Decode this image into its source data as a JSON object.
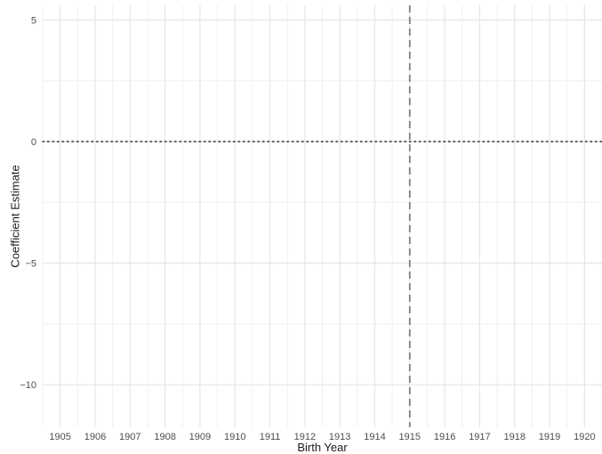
{
  "chart_data": {
    "type": "scatter",
    "title": "",
    "xlabel": "Birth Year",
    "ylabel": "Coefficient Estimate",
    "x_ticks": [
      1905,
      1906,
      1907,
      1908,
      1909,
      1910,
      1911,
      1912,
      1913,
      1914,
      1915,
      1916,
      1917,
      1918,
      1919,
      1920
    ],
    "y_ticks": [
      5,
      0,
      -5,
      -10
    ],
    "y_tick_labels": [
      "5",
      "0",
      "−5",
      "−10"
    ],
    "xlim": [
      1904.5,
      1920.5
    ],
    "ylim": [
      -11.75,
      5.6
    ],
    "series": [],
    "reference_lines": [
      {
        "orientation": "horizontal",
        "value": 0,
        "style": "dotted",
        "color": "#333333"
      },
      {
        "orientation": "vertical",
        "value": 1915,
        "style": "dashed",
        "color": "#7f7f7f"
      }
    ],
    "grid": true,
    "legend": "none"
  }
}
